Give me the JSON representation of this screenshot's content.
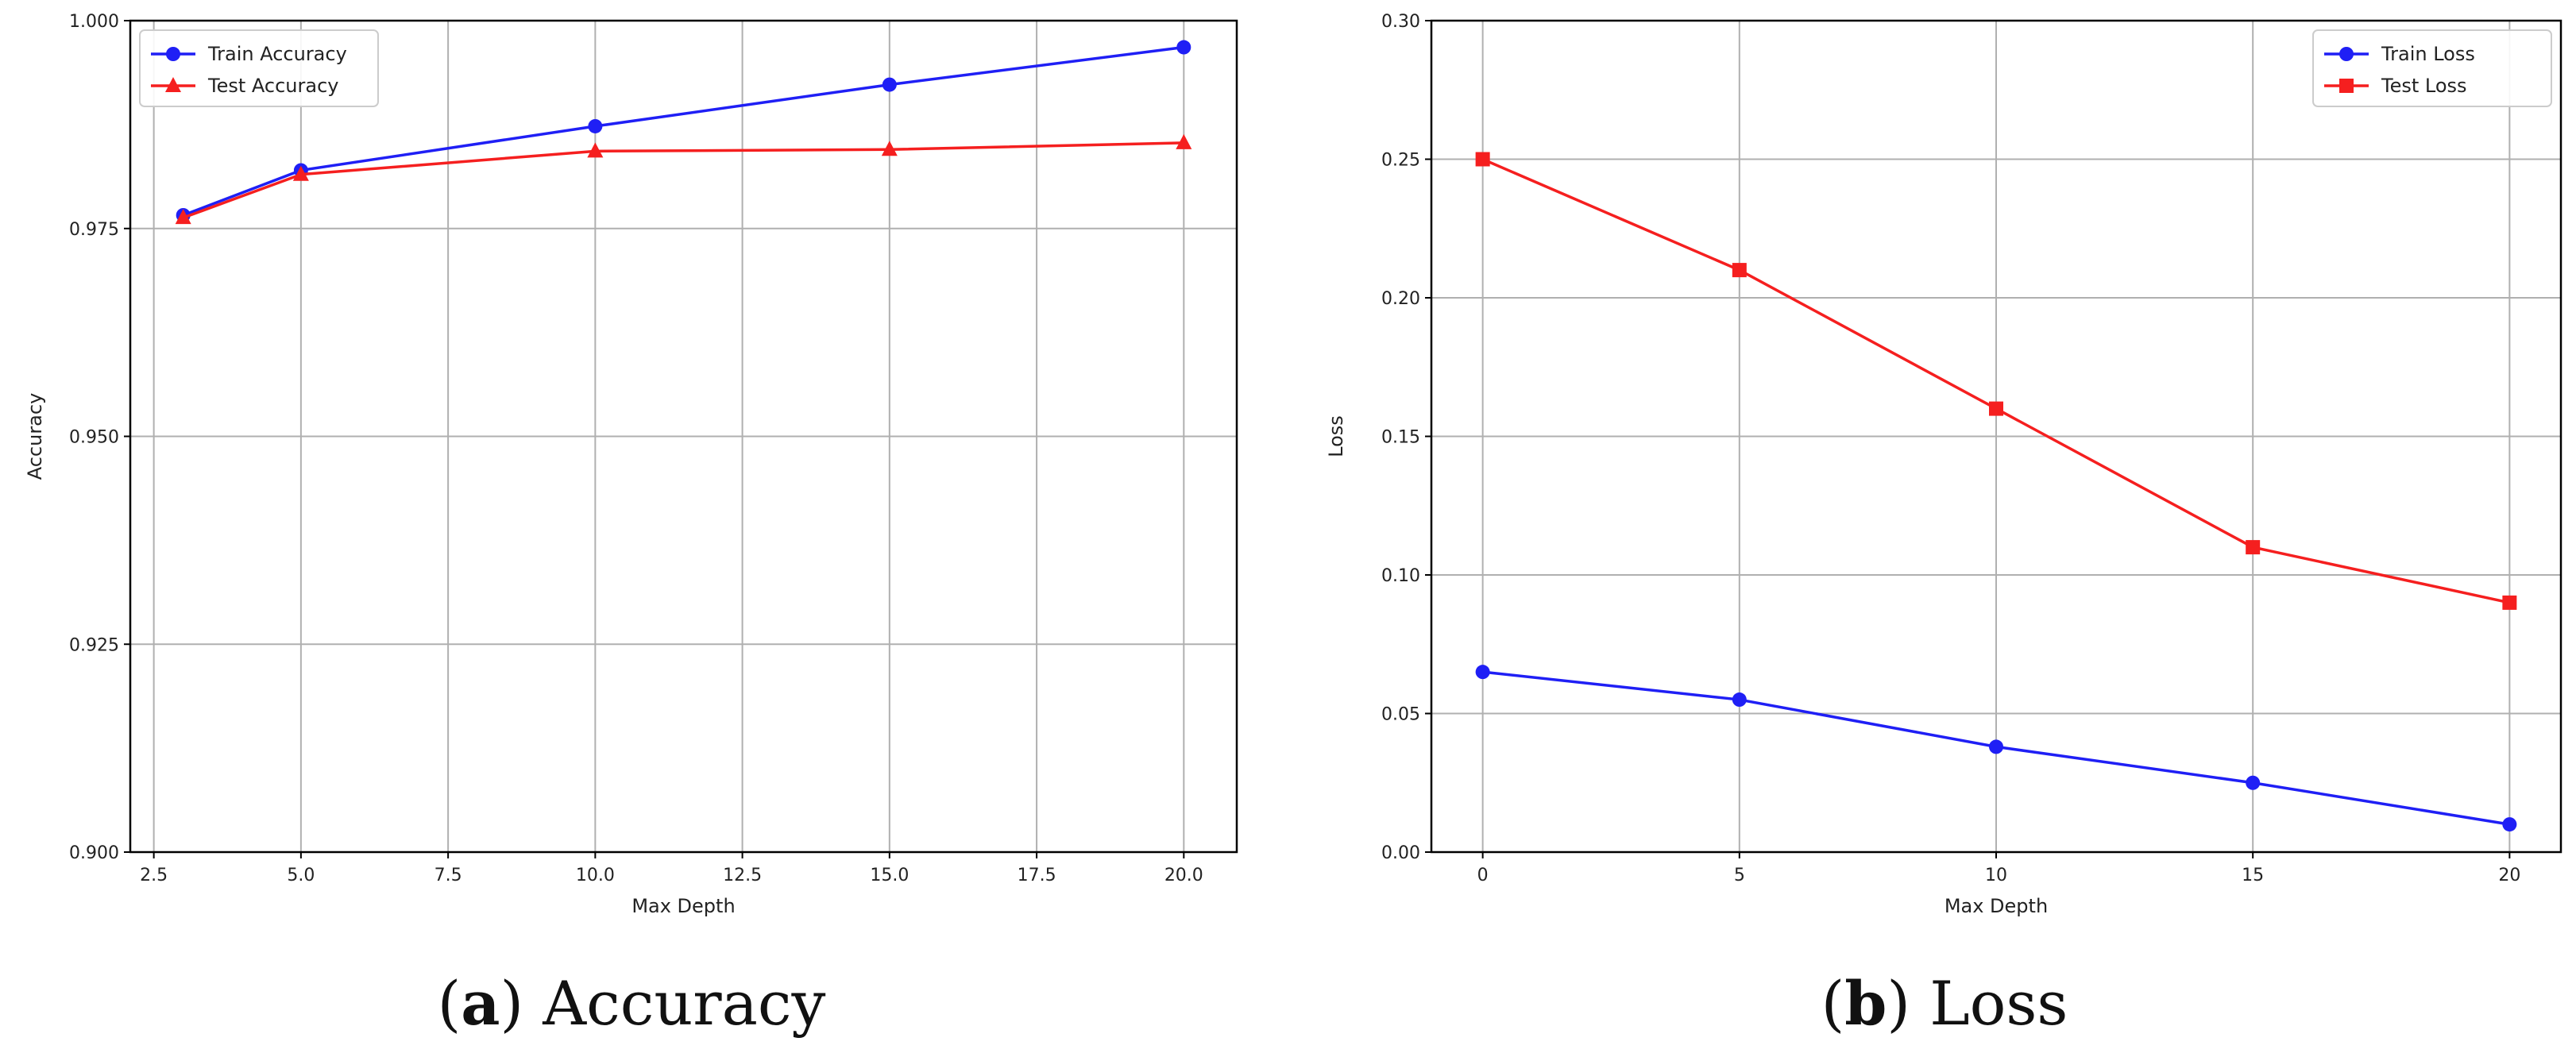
{
  "colors": {
    "train": "#1f1ff5",
    "test": "#f51f1f",
    "grid": "#b0b0b0"
  },
  "captions": [
    {
      "letter": "a",
      "text": " Accuracy",
      "open": "(",
      "close": ")"
    },
    {
      "letter": "b",
      "text": " Loss",
      "open": "(",
      "close": ")"
    }
  ],
  "chart_data": [
    {
      "type": "line",
      "title": "",
      "xlabel": "Max Depth",
      "ylabel": "Accuracy",
      "xlim": [
        2.1,
        20.9
      ],
      "ylim": [
        0.9,
        1.0
      ],
      "xticks": [
        2.5,
        5.0,
        7.5,
        10.0,
        12.5,
        15.0,
        17.5,
        20.0
      ],
      "xtick_labels": [
        "2.5",
        "5.0",
        "7.5",
        "10.0",
        "12.5",
        "15.0",
        "17.5",
        "20.0"
      ],
      "yticks": [
        0.9,
        0.925,
        0.95,
        0.975,
        1.0
      ],
      "ytick_labels": [
        "0.900",
        "0.925",
        "0.950",
        "0.975",
        "1.000"
      ],
      "grid": true,
      "legend_position": "top-left",
      "x": [
        3,
        5,
        10,
        15,
        20
      ],
      "series": [
        {
          "name": "Train Accuracy",
          "marker": "circle",
          "color": "#1f1ff5",
          "values": [
            0.9766,
            0.982,
            0.9873,
            0.9923,
            0.9968
          ]
        },
        {
          "name": "Test Accuracy",
          "marker": "triangle",
          "color": "#f51f1f",
          "values": [
            0.9763,
            0.9815,
            0.9843,
            0.9845,
            0.9853
          ]
        }
      ]
    },
    {
      "type": "line",
      "title": "",
      "xlabel": "Max Depth",
      "ylabel": "Loss",
      "xlim": [
        -1.0,
        21.0
      ],
      "ylim": [
        0.0,
        0.3
      ],
      "xticks": [
        0,
        5,
        10,
        15,
        20
      ],
      "xtick_labels": [
        "0",
        "5",
        "10",
        "15",
        "20"
      ],
      "yticks": [
        0.0,
        0.05,
        0.1,
        0.15,
        0.2,
        0.25,
        0.3
      ],
      "ytick_labels": [
        "0.00",
        "0.05",
        "0.10",
        "0.15",
        "0.20",
        "0.25",
        "0.30"
      ],
      "grid": true,
      "legend_position": "top-right",
      "x": [
        0,
        5,
        10,
        15,
        20
      ],
      "series": [
        {
          "name": "Train Loss",
          "marker": "circle",
          "color": "#1f1ff5",
          "values": [
            0.065,
            0.055,
            0.038,
            0.025,
            0.01
          ]
        },
        {
          "name": "Test Loss",
          "marker": "square",
          "color": "#f51f1f",
          "values": [
            0.25,
            0.21,
            0.16,
            0.11,
            0.09
          ]
        }
      ]
    }
  ]
}
